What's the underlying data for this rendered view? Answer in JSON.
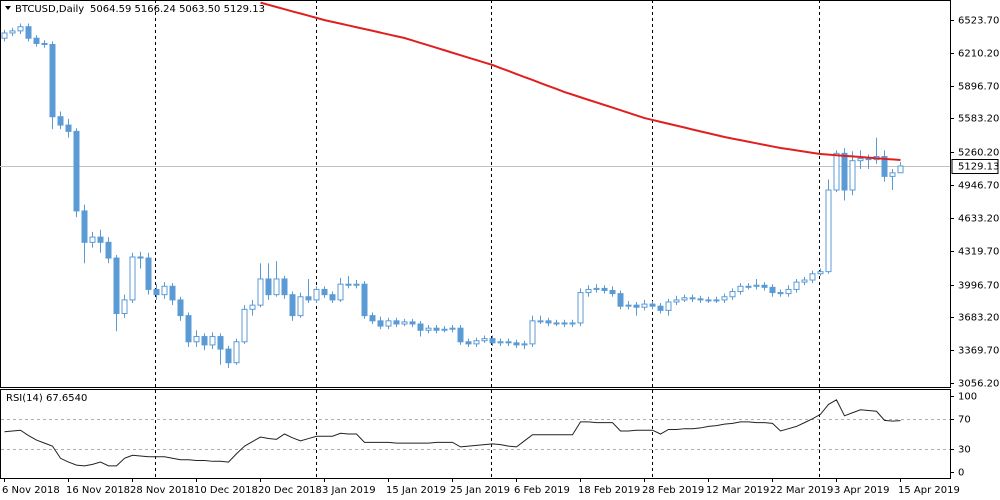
{
  "chart_data": {
    "type": "candlestick",
    "header": "BTCUSD,Daily",
    "ohlc_text": "5064.59 5166.24 5063.50 5129.13",
    "up_color": "#ffffff",
    "down_color": "#5b9bd5",
    "edge_color": "#5b9bd5",
    "categories": [
      "6 Nov 2018",
      null,
      null,
      null,
      null,
      null,
      null,
      null,
      "16 Nov 2018",
      null,
      null,
      null,
      null,
      null,
      null,
      null,
      "28 Nov 2018",
      null,
      null,
      null,
      null,
      null,
      null,
      null,
      "10 Dec 2018",
      null,
      null,
      null,
      null,
      null,
      null,
      null,
      "20 Dec 2018",
      null,
      null,
      null,
      null,
      null,
      null,
      null,
      "3 Jan 2019",
      null,
      null,
      null,
      null,
      null,
      null,
      null,
      "15 Jan 2019",
      null,
      null,
      null,
      null,
      null,
      null,
      null,
      "25 Jan 2019",
      null,
      null,
      null,
      null,
      null,
      null,
      null,
      "6 Feb 2019",
      null,
      null,
      null,
      null,
      null,
      null,
      null,
      "18 Feb 2019",
      null,
      null,
      null,
      null,
      null,
      null,
      null,
      "28 Feb 2019",
      null,
      null,
      null,
      null,
      null,
      null,
      null,
      "12 Mar 2019",
      null,
      null,
      null,
      null,
      null,
      null,
      null,
      "22 Mar 2019",
      null,
      null,
      null,
      null,
      null,
      null,
      null,
      "3 Apr 2019",
      null,
      null,
      null,
      null,
      null,
      null,
      null,
      "15 Apr 2019"
    ],
    "open": [
      6350,
      6400,
      6420,
      6460,
      6350,
      6300,
      6290,
      5600,
      5520,
      5460,
      4700,
      4400,
      4450,
      4400,
      4250,
      3720,
      3850,
      4260,
      4250,
      3950,
      3900,
      3980,
      3850,
      3700,
      3450,
      3500,
      3420,
      3500,
      3380,
      3250,
      3450,
      3760,
      3800,
      4050,
      3900,
      4050,
      3900,
      3700,
      3880,
      3850,
      3950,
      3900,
      3850,
      4000,
      3990,
      4000,
      3700,
      3650,
      3600,
      3650,
      3620,
      3640,
      3620,
      3560,
      3580,
      3560,
      3570,
      3580,
      3450,
      3430,
      3460,
      3480,
      3440,
      3450,
      3440,
      3420,
      3430,
      3650,
      3650,
      3630,
      3630,
      3620,
      3630,
      3920,
      3950,
      3960,
      3940,
      3910,
      3790,
      3800,
      3780,
      3810,
      3790,
      3750,
      3830,
      3850,
      3870,
      3860,
      3850,
      3850,
      3850,
      3880,
      3930,
      3980,
      3980,
      3990,
      3970,
      3920,
      3910,
      3950,
      4020,
      4040,
      4100,
      4120,
      4900,
      5250,
      4900,
      5180,
      5200,
      5190,
      5220,
      5030,
      5064.59
    ],
    "high": [
      6430,
      6450,
      6490,
      6490,
      6380,
      6330,
      6320,
      5650,
      5580,
      5490,
      4760,
      4500,
      4520,
      4450,
      4280,
      3900,
      4300,
      4310,
      4300,
      4000,
      4020,
      4010,
      3880,
      3730,
      3560,
      3530,
      3540,
      3530,
      3410,
      3480,
      3800,
      3850,
      4200,
      4200,
      4220,
      4080,
      3930,
      3920,
      4050,
      3980,
      3980,
      3930,
      4060,
      4080,
      4040,
      4030,
      3730,
      3690,
      3680,
      3680,
      3670,
      3670,
      3650,
      3610,
      3610,
      3600,
      3610,
      3610,
      3480,
      3490,
      3510,
      3510,
      3480,
      3480,
      3470,
      3460,
      3700,
      3700,
      3680,
      3660,
      3660,
      3660,
      3960,
      3990,
      4000,
      3990,
      3980,
      3940,
      3840,
      3830,
      3850,
      3840,
      3820,
      3860,
      3890,
      3900,
      3900,
      3890,
      3880,
      3880,
      3910,
      3960,
      4010,
      4010,
      4050,
      4020,
      4000,
      3950,
      3990,
      4050,
      4070,
      4130,
      4150,
      5000,
      5280,
      5300,
      5270,
      5280,
      5240,
      5400,
      5280,
      5100,
      5166.24
    ],
    "low": [
      6320,
      6370,
      6390,
      6320,
      6270,
      6260,
      5480,
      5480,
      5400,
      4640,
      4200,
      4350,
      4300,
      4200,
      3550,
      3680,
      3820,
      4150,
      3900,
      3850,
      3860,
      3800,
      3650,
      3400,
      3400,
      3370,
      3380,
      3230,
      3200,
      3230,
      3430,
      3700,
      3780,
      3850,
      3880,
      3860,
      3650,
      3680,
      3820,
      3820,
      3870,
      3820,
      3830,
      3960,
      3960,
      3670,
      3620,
      3570,
      3570,
      3590,
      3600,
      3590,
      3500,
      3530,
      3530,
      3540,
      3540,
      3420,
      3400,
      3400,
      3440,
      3410,
      3410,
      3410,
      3390,
      3380,
      3400,
      3620,
      3600,
      3600,
      3590,
      3590,
      3600,
      3880,
      3920,
      3910,
      3880,
      3760,
      3760,
      3700,
      3750,
      3760,
      3720,
      3700,
      3800,
      3830,
      3830,
      3820,
      3820,
      3820,
      3820,
      3850,
      3900,
      3950,
      3950,
      3940,
      3880,
      3880,
      3880,
      3920,
      3990,
      4010,
      4080,
      4100,
      4880,
      4800,
      4850,
      5100,
      5100,
      5150,
      4980,
      4900,
      5063.5
    ],
    "close": [
      6400,
      6420,
      6460,
      6350,
      6300,
      6290,
      5600,
      5520,
      5460,
      4700,
      4400,
      4450,
      4400,
      4250,
      3720,
      3850,
      4260,
      4250,
      3950,
      3900,
      3980,
      3850,
      3700,
      3450,
      3500,
      3420,
      3500,
      3380,
      3250,
      3450,
      3760,
      3800,
      4050,
      3900,
      4050,
      3900,
      3700,
      3880,
      3850,
      3950,
      3900,
      3850,
      4000,
      3990,
      4000,
      3700,
      3650,
      3600,
      3650,
      3620,
      3640,
      3620,
      3560,
      3580,
      3560,
      3570,
      3580,
      3450,
      3430,
      3460,
      3480,
      3440,
      3450,
      3440,
      3420,
      3430,
      3650,
      3650,
      3630,
      3630,
      3620,
      3630,
      3920,
      3950,
      3960,
      3940,
      3910,
      3790,
      3800,
      3780,
      3810,
      3790,
      3750,
      3830,
      3850,
      3870,
      3860,
      3850,
      3850,
      3850,
      3880,
      3930,
      3980,
      3980,
      3990,
      3970,
      3920,
      3910,
      3950,
      4020,
      4040,
      4100,
      4120,
      4900,
      5250,
      4900,
      5180,
      5200,
      5190,
      5220,
      5030,
      5064.59,
      5129.13
    ],
    "ylim": [
      3018,
      6715
    ],
    "yticks": [
      {
        "value": 6523.7,
        "label": "6523.70"
      },
      {
        "value": 6210.2,
        "label": "6210.20"
      },
      {
        "value": 5896.7,
        "label": "5896.70"
      },
      {
        "value": 5583.2,
        "label": "5583.20"
      },
      {
        "value": 5260.2,
        "label": "5260.20"
      },
      {
        "value": 4946.7,
        "label": "4946.70"
      },
      {
        "value": 4633.2,
        "label": "4633.20"
      },
      {
        "value": 4319.7,
        "label": "4319.70"
      },
      {
        "value": 3996.7,
        "label": "3996.70"
      },
      {
        "value": 3683.2,
        "label": "3683.20"
      },
      {
        "value": 3369.7,
        "label": "3369.70"
      },
      {
        "value": 3056.2,
        "label": "3056.20"
      }
    ],
    "last_price": 5129.13,
    "ma": {
      "color": "#e02020",
      "values": [
        null,
        null,
        null,
        null,
        null,
        null,
        null,
        null,
        null,
        null,
        null,
        null,
        null,
        null,
        null,
        null,
        null,
        null,
        null,
        null,
        null,
        null,
        null,
        null,
        null,
        null,
        null,
        null,
        null,
        null,
        null,
        null,
        6690,
        6669,
        6648,
        6627,
        6606,
        6586,
        6565,
        6544,
        6523,
        6506,
        6489,
        6472,
        6455,
        6438,
        6421,
        6403,
        6386,
        6369,
        6352,
        6329,
        6305,
        6282,
        6258,
        6235,
        6211,
        6188,
        6164,
        6141,
        6117,
        6094,
        6065,
        6037,
        6008,
        5979,
        5951,
        5922,
        5893,
        5865,
        5836,
        5811,
        5786,
        5761,
        5736,
        5712,
        5687,
        5662,
        5637,
        5612,
        5587,
        5569,
        5551,
        5533,
        5515,
        5497,
        5478,
        5460,
        5442,
        5424,
        5406,
        5391,
        5376,
        5361,
        5346,
        5331,
        5316,
        5301,
        5290,
        5278,
        5267,
        5255,
        5244,
        5238,
        5232,
        5226,
        5221,
        5215,
        5209,
        5203,
        5197,
        5192,
        5186
      ]
    },
    "rsi": {
      "title": "RSI(14) 67.6540",
      "color": "#222222",
      "ylim": [
        -8,
        108
      ],
      "yticks": [
        100,
        70,
        30,
        0
      ],
      "levels": [
        70,
        30
      ],
      "values": [
        53,
        54,
        55,
        48,
        42,
        38,
        34,
        18,
        13,
        9,
        8,
        10,
        13,
        8,
        8,
        18,
        22,
        21,
        20,
        20,
        20,
        18,
        16,
        16,
        15,
        15,
        14,
        14,
        13,
        24,
        34,
        40,
        46,
        44,
        43,
        50,
        45,
        41,
        44,
        47,
        47,
        47,
        51,
        50,
        50,
        39,
        39,
        39,
        39,
        38,
        38,
        38,
        38,
        38,
        39,
        39,
        39,
        33,
        34,
        35,
        36,
        37,
        36,
        34,
        33,
        41,
        49,
        49,
        49,
        49,
        49,
        49,
        66,
        66,
        65,
        65,
        65,
        54,
        54,
        55,
        55,
        55,
        50,
        56,
        56,
        57,
        57,
        58,
        60,
        61,
        63,
        64,
        66,
        66,
        65,
        65,
        64,
        54,
        57,
        60,
        65,
        70,
        76,
        89,
        95,
        74,
        78,
        82,
        81,
        80,
        68,
        67,
        67.654
      ]
    }
  }
}
